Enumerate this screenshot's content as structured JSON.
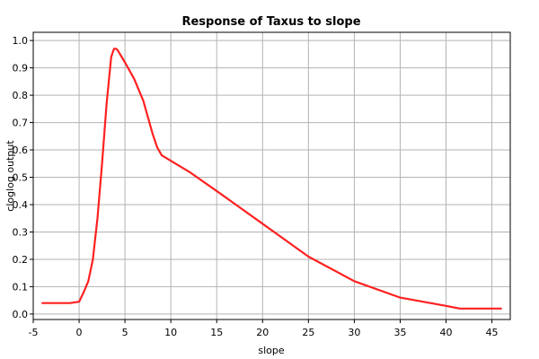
{
  "chart_data": {
    "type": "line",
    "title": "Response of Taxus to slope",
    "xlabel": "slope",
    "ylabel": "cloglog output",
    "xlim": [
      -5,
      47
    ],
    "ylim": [
      -0.02,
      1.03
    ],
    "xticks": [
      -5,
      0,
      5,
      10,
      15,
      20,
      25,
      30,
      35,
      40,
      45
    ],
    "xtick_labels": [
      "-5",
      "0",
      "5",
      "10",
      "15",
      "20",
      "25",
      "30",
      "35",
      "40",
      "45"
    ],
    "yticks": [
      0.0,
      0.1,
      0.2,
      0.3,
      0.4,
      0.5,
      0.6,
      0.7,
      0.8,
      0.9,
      1.0
    ],
    "ytick_labels": [
      "0.0",
      "0.1",
      "0.2",
      "0.3",
      "0.4",
      "0.5",
      "0.6",
      "0.7",
      "0.8",
      "0.9",
      "1.0"
    ],
    "grid": true,
    "series": [
      {
        "color": "#ff2020",
        "x": [
          -4,
          -1,
          0,
          0.5,
          1,
          1.5,
          2,
          2.5,
          3,
          3.5,
          3.8,
          4,
          4.2,
          5,
          6,
          7,
          8,
          8.5,
          9,
          10,
          12,
          15,
          20,
          25,
          30,
          35,
          40,
          41.5,
          46
        ],
        "y": [
          0.04,
          0.04,
          0.045,
          0.08,
          0.12,
          0.2,
          0.35,
          0.55,
          0.77,
          0.94,
          0.97,
          0.97,
          0.965,
          0.92,
          0.86,
          0.78,
          0.66,
          0.61,
          0.58,
          0.56,
          0.52,
          0.45,
          0.33,
          0.21,
          0.12,
          0.06,
          0.03,
          0.02,
          0.02
        ]
      }
    ]
  }
}
